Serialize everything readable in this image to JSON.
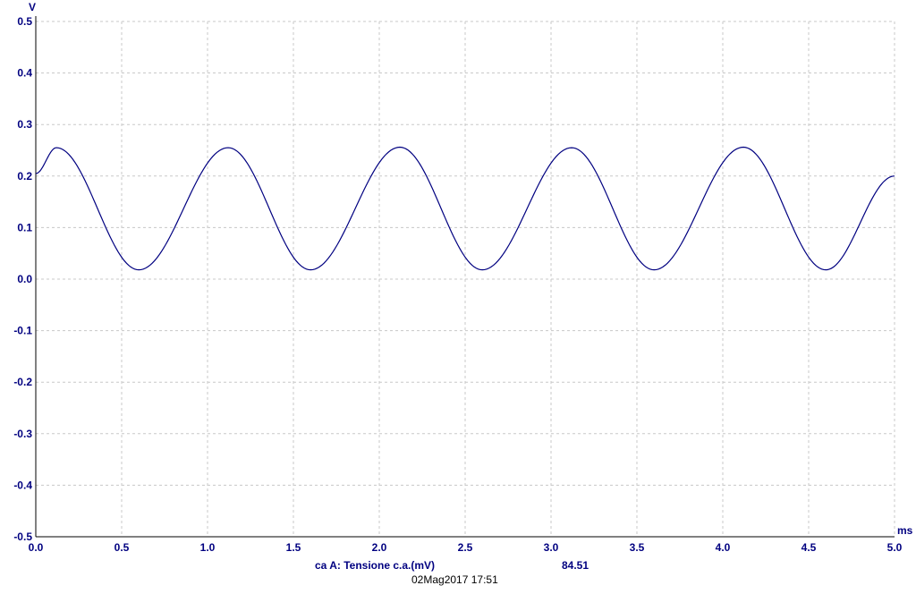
{
  "chart_data": {
    "type": "line",
    "xlim": [
      0.0,
      5.0
    ],
    "ylim": [
      -0.5,
      0.5
    ],
    "x_ticks": [
      "0.0",
      "0.5",
      "1.0",
      "1.5",
      "2.0",
      "2.5",
      "3.0",
      "3.5",
      "4.0",
      "4.5",
      "5.0"
    ],
    "y_ticks": [
      "0.5",
      "0.4",
      "0.3",
      "0.2",
      "0.1",
      "0.0",
      "-0.1",
      "-0.2",
      "-0.3",
      "-0.4",
      "-0.5"
    ],
    "xunit": "ms",
    "yunit": "V",
    "grid": true,
    "series": [
      {
        "name": "ca A: Tensione c.a.(mV)",
        "color": "#000080",
        "x": [
          0.0,
          0.12,
          0.6,
          1.12,
          1.6,
          2.12,
          2.6,
          3.12,
          3.6,
          4.12,
          4.6,
          5.0
        ],
        "y": [
          0.205,
          0.255,
          0.018,
          0.255,
          0.018,
          0.256,
          0.018,
          0.255,
          0.018,
          0.256,
          0.018,
          0.2
        ]
      }
    ]
  },
  "footer": {
    "channel_label": "ca A: Tensione c.a.(mV)",
    "channel_value": "84.51",
    "timestamp": "02Mag2017  17:51"
  },
  "colors": {
    "axis_text": "#000080",
    "trace": "#000080",
    "grid": "#c8c8c8"
  }
}
